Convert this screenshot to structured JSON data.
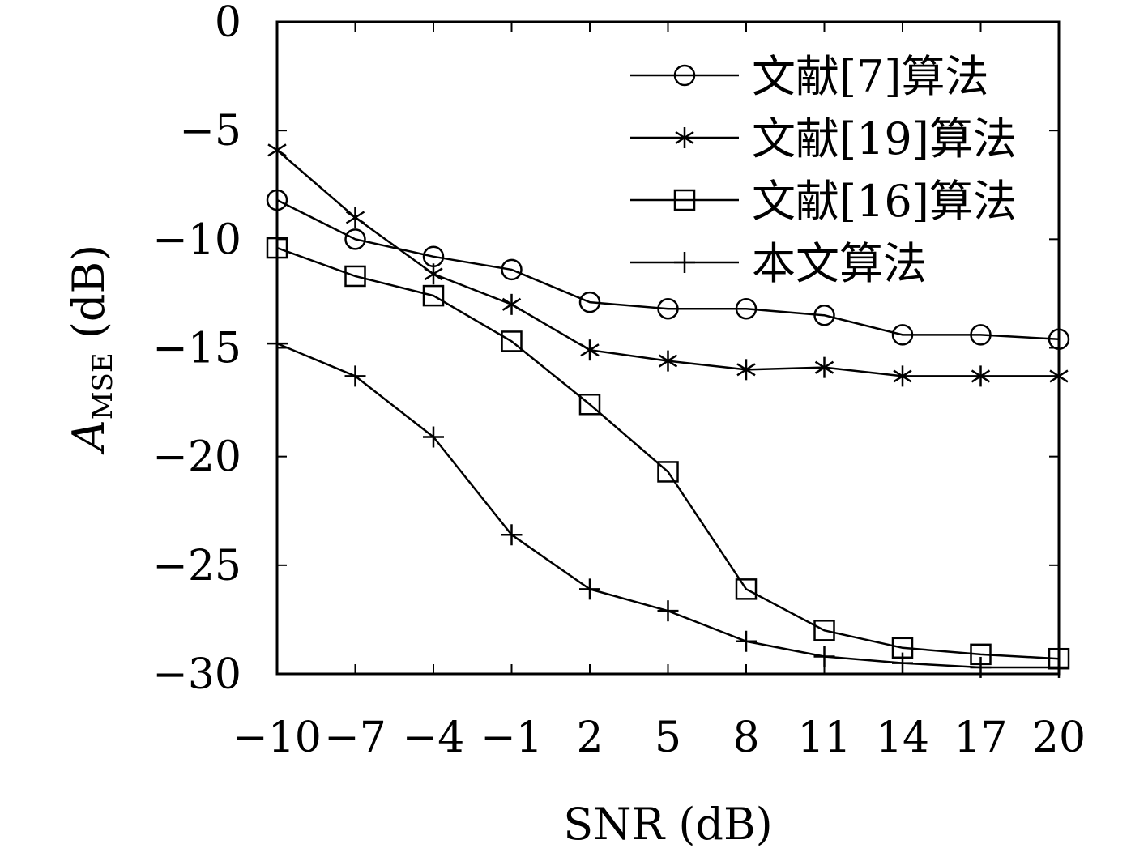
{
  "chart_data": {
    "type": "line",
    "title": "",
    "xlabel": "SNR (dB)",
    "ylabel": {
      "base": "A",
      "subscript": "MSE",
      "suffix": " (dB)"
    },
    "x": [
      -10,
      -7,
      -4,
      -1,
      2,
      5,
      8,
      11,
      14,
      17,
      20
    ],
    "xticks": [
      "−10",
      "−7",
      "−4",
      "−1",
      "2",
      "5",
      "8",
      "11",
      "14",
      "17",
      "20"
    ],
    "yticks": [
      {
        "value": 0,
        "label": "0"
      },
      {
        "value": -5,
        "label": "−5"
      },
      {
        "value": -10,
        "label": "−10"
      },
      {
        "value": -15,
        "label": "−15"
      },
      {
        "value": -20,
        "label": "−20"
      },
      {
        "value": -25,
        "label": "−25"
      },
      {
        "value": -30,
        "label": "−30"
      }
    ],
    "xlim": [
      -10,
      20
    ],
    "ylim": [
      -30,
      0
    ],
    "grid": false,
    "legend_position": "top-right",
    "series": [
      {
        "name": "文献[7]算法",
        "marker": "circle",
        "values": [
          -8.2,
          -10.0,
          -10.8,
          -11.4,
          -12.9,
          -13.2,
          -13.2,
          -13.5,
          -14.4,
          -14.4,
          -14.6
        ]
      },
      {
        "name": "文献[19]算法",
        "marker": "asterisk",
        "values": [
          -5.9,
          -9.0,
          -11.6,
          -13.0,
          -15.1,
          -15.6,
          -16.0,
          -15.9,
          -16.3,
          -16.3,
          -16.3
        ]
      },
      {
        "name": "文献[16]算法",
        "marker": "square",
        "values": [
          -10.4,
          -11.7,
          -12.6,
          -14.7,
          -17.6,
          -20.7,
          -26.1,
          -28.0,
          -28.8,
          -29.1,
          -29.3
        ]
      },
      {
        "name": "本文算法",
        "marker": "plus",
        "values": [
          -14.8,
          -16.3,
          -19.1,
          -23.6,
          -26.1,
          -27.1,
          -28.5,
          -29.2,
          -29.5,
          -29.7,
          -29.7
        ]
      }
    ]
  }
}
